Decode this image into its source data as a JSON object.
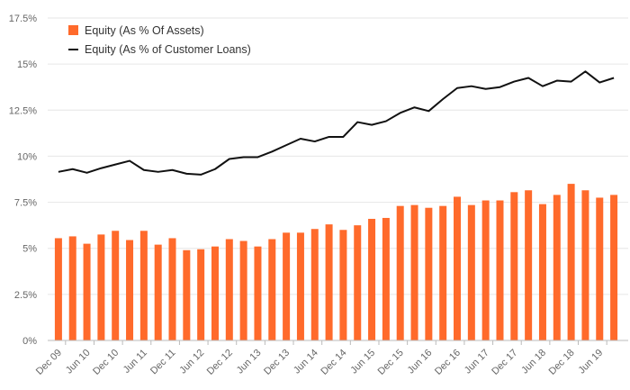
{
  "chart_data": {
    "type": "bar",
    "categories": [
      "Dec 09",
      "",
      "Jun 10",
      "",
      "Dec 10",
      "",
      "Jun 11",
      "",
      "Dec 11",
      "",
      "Jun 12",
      "",
      "Dec 12",
      "",
      "Jun 13",
      "",
      "Dec 13",
      "",
      "Jun 14",
      "",
      "Dec 14",
      "",
      "Jun 15",
      "",
      "Dec 15",
      "",
      "Jun 16",
      "",
      "Dec 16",
      "",
      "Jun 17",
      "",
      "Dec 17",
      "",
      "Jun 18",
      "",
      "Dec 18",
      "",
      "Jun 19",
      ""
    ],
    "series": [
      {
        "name": "Equity (As % Of Assets)",
        "type": "bar",
        "color": "#ff6a2b",
        "values": [
          5.55,
          5.65,
          5.25,
          5.75,
          5.95,
          5.45,
          5.95,
          5.2,
          5.55,
          4.9,
          4.95,
          5.1,
          5.5,
          5.4,
          5.1,
          5.5,
          5.85,
          5.85,
          6.05,
          6.3,
          6.0,
          6.25,
          6.6,
          6.65,
          7.3,
          7.35,
          7.2,
          7.3,
          7.8,
          7.35,
          7.6,
          7.6,
          8.05,
          8.15,
          7.4,
          7.9,
          8.5,
          8.15,
          7.75,
          7.9
        ]
      },
      {
        "name": "Equity (As % of Customer Loans)",
        "type": "line",
        "color": "#111111",
        "values": [
          9.15,
          9.3,
          9.1,
          9.35,
          9.55,
          9.75,
          9.25,
          9.15,
          9.25,
          9.05,
          9.0,
          9.3,
          9.85,
          9.95,
          9.95,
          10.25,
          10.6,
          10.95,
          10.8,
          11.05,
          11.05,
          11.85,
          11.7,
          11.9,
          12.35,
          12.65,
          12.45,
          13.1,
          13.7,
          13.8,
          13.65,
          13.75,
          14.05,
          14.25,
          13.8,
          14.1,
          14.05,
          14.6,
          14.0,
          14.25
        ]
      }
    ],
    "y_ticks": [
      "0%",
      "2.5%",
      "5%",
      "7.5%",
      "10%",
      "12.5%",
      "15%",
      "17.5%"
    ],
    "ylim": [
      0,
      17.5
    ],
    "grid": true,
    "legend_position": "top-left"
  }
}
